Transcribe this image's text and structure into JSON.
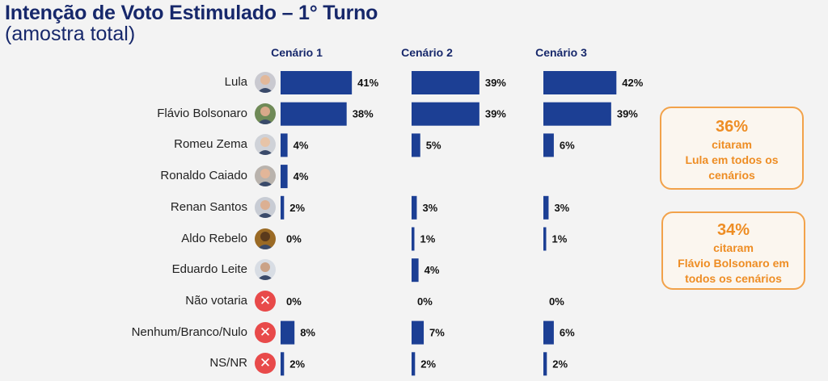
{
  "header": {
    "title": "Intenção de Voto Estimulado – 1° Turno",
    "subtitle": "(amostra total)"
  },
  "colors": {
    "bar": "#1c3f94",
    "title": "#17286b",
    "highlight_border": "#f2a24a",
    "highlight_text": "#ee8d24",
    "x_icon": "#e84a4a"
  },
  "candidates": [
    {
      "name": "Lula",
      "icon": "photo-lula"
    },
    {
      "name": "Flávio Bolsonaro",
      "icon": "photo-flavio"
    },
    {
      "name": "Romeu Zema",
      "icon": "photo-zema"
    },
    {
      "name": "Ronaldo Caiado",
      "icon": "photo-caiado"
    },
    {
      "name": "Renan Santos",
      "icon": "photo-renan"
    },
    {
      "name": "Aldo Rebelo",
      "icon": "photo-aldo"
    },
    {
      "name": "Eduardo Leite",
      "icon": "photo-leite"
    },
    {
      "name": "Não votaria",
      "icon": "x-icon"
    },
    {
      "name": "Nenhum/Branco/Nulo",
      "icon": "x-icon"
    },
    {
      "name": "NS/NR",
      "icon": "x-icon"
    }
  ],
  "chart_data": {
    "type": "bar",
    "orientation": "horizontal",
    "categories": [
      "Lula",
      "Flávio Bolsonaro",
      "Romeu Zema",
      "Ronaldo Caiado",
      "Renan Santos",
      "Aldo Rebelo",
      "Eduardo Leite",
      "Não votaria",
      "Nenhum/Branco/Nulo",
      "NS/NR"
    ],
    "series": [
      {
        "name": "Cenário 1",
        "values": [
          41,
          38,
          4,
          4,
          2,
          0,
          null,
          0,
          8,
          2
        ],
        "labels": [
          "41%",
          "38%",
          "4%",
          "4%",
          "2%",
          "0%",
          null,
          "0%",
          "8%",
          "2%"
        ]
      },
      {
        "name": "Cenário 2",
        "values": [
          39,
          39,
          5,
          null,
          3,
          1,
          4,
          0,
          7,
          2
        ],
        "labels": [
          "39%",
          "39%",
          "5%",
          null,
          "3%",
          "1%",
          "4%",
          "0%",
          "7%",
          "2%"
        ]
      },
      {
        "name": "Cenário 3",
        "values": [
          42,
          39,
          6,
          null,
          3,
          1,
          null,
          0,
          6,
          2
        ],
        "labels": [
          "42%",
          "39%",
          "6%",
          null,
          "3%",
          "1%",
          null,
          "0%",
          "6%",
          "2%"
        ]
      }
    ],
    "unit": "%"
  },
  "highlights": [
    {
      "value": "36%",
      "line1": "citaram",
      "line2": "Lula em todos os",
      "line3": "cenários"
    },
    {
      "value": "34%",
      "line1": "citaram",
      "line2": "Flávio Bolsonaro em",
      "line3": "todos os cenários"
    }
  ]
}
